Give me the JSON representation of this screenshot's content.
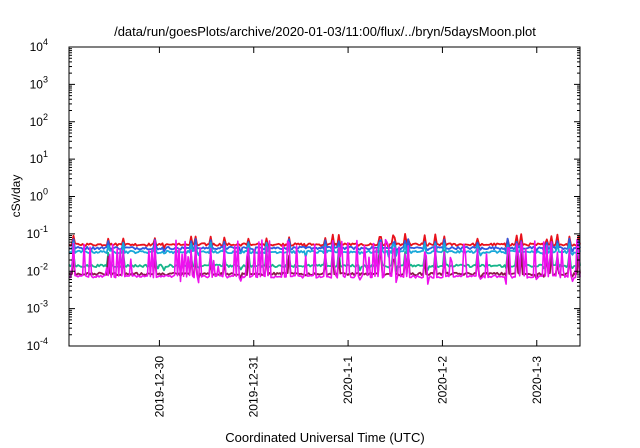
{
  "chart_data": {
    "type": "line",
    "title": "/data/run/goesPlots/archive/2020-01-03/11:00/flux/../bryn/5daysMoon.plot",
    "xlabel": "Coordinated Universal Time (UTC)",
    "ylabel": "cSv/day",
    "y_scale": "log",
    "ylim": [
      0.0001,
      10000
    ],
    "y_ticks": [
      {
        "mant": "10",
        "exp": "-4",
        "value": 0.0001
      },
      {
        "mant": "10",
        "exp": "-3",
        "value": 0.001
      },
      {
        "mant": "10",
        "exp": "-2",
        "value": 0.01
      },
      {
        "mant": "10",
        "exp": "-1",
        "value": 0.1
      },
      {
        "mant": "10",
        "exp": "0",
        "value": 1
      },
      {
        "mant": "10",
        "exp": "1",
        "value": 10
      },
      {
        "mant": "10",
        "exp": "2",
        "value": 100
      },
      {
        "mant": "10",
        "exp": "3",
        "value": 1000
      },
      {
        "mant": "10",
        "exp": "4",
        "value": 10000
      }
    ],
    "xlim": [
      "2019-12-29T01:00",
      "2020-01-03T11:00"
    ],
    "x_ticks": [
      {
        "label": "2019-12-30",
        "value": "2019-12-30T00:00"
      },
      {
        "label": "2019-12-31",
        "value": "2019-12-31T00:00"
      },
      {
        "label": "2020-1-1",
        "value": "2020-01-01T00:00"
      },
      {
        "label": "2020-1-2",
        "value": "2020-01-02T00:00"
      },
      {
        "label": "2020-1-3",
        "value": "2020-01-03T00:00"
      }
    ],
    "grid": false,
    "legend": "none",
    "series": [
      {
        "color": "#e8111b",
        "base": 0.052,
        "low": 0.04,
        "high": 0.1
      },
      {
        "color": "#2f58e0",
        "base": 0.042,
        "low": 0.03,
        "high": 0.075
      },
      {
        "color": "#19a8d8",
        "base": 0.033,
        "low": 0.024,
        "high": 0.06
      },
      {
        "color": "#16b58a",
        "base": 0.014,
        "low": 0.01,
        "high": 0.04
      },
      {
        "color": "#8b1a4a",
        "base": 0.0085,
        "low": 0.0062,
        "high": 0.03
      },
      {
        "color": "#ee11ee",
        "base": 0.0072,
        "low": 0.0045,
        "high": 0.07
      }
    ]
  }
}
